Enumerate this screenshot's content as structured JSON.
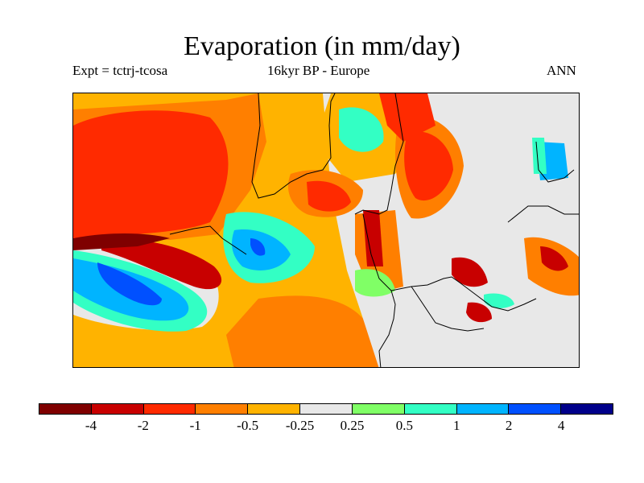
{
  "title": "Evaporation (in mm/day)",
  "subtitle_left": "Expt = tctrj-tcosa",
  "subtitle_center": "16kyr BP - Europe",
  "subtitle_right": "ANN",
  "colorbar": {
    "colors": [
      "#7f0000",
      "#c80000",
      "#ff2a00",
      "#ff7f00",
      "#ffb300",
      "#e8e8e8",
      "#80ff66",
      "#33ffc4",
      "#00b4ff",
      "#0050ff",
      "#00008a"
    ],
    "labels": [
      "-4",
      "-2",
      "-1",
      "-0.5",
      "-0.25",
      "0.25",
      "0.5",
      "1",
      "2",
      "4"
    ]
  },
  "map": {
    "region": "Europe",
    "land_outline_color": "#000000"
  }
}
